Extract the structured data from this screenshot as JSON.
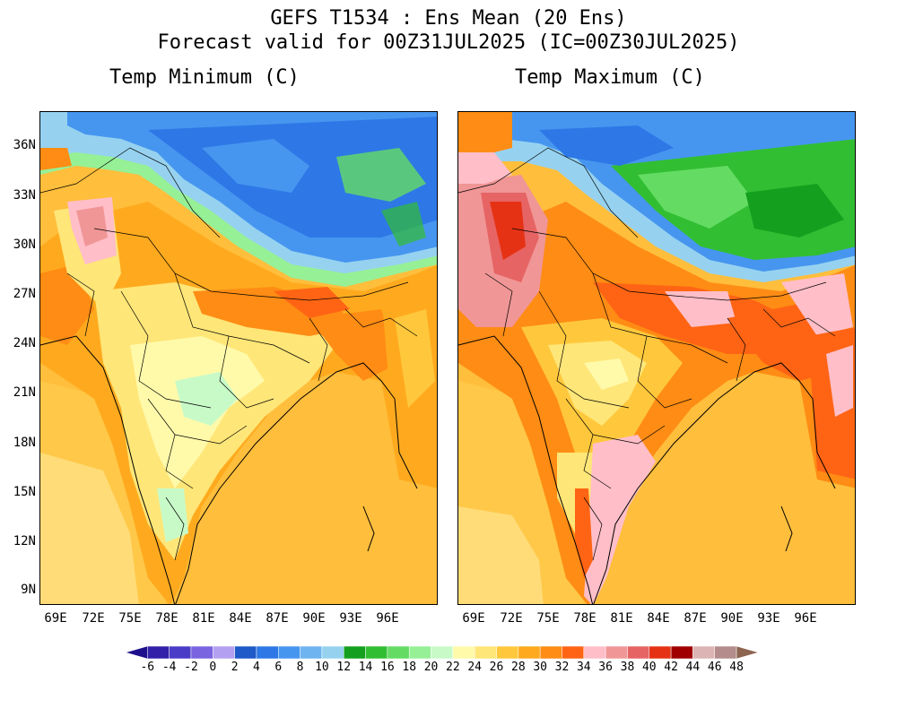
{
  "header": {
    "line1": "GEFS T1534 : Ens Mean (20 Ens)",
    "line2": "Forecast valid for 00Z31JUL2025 (IC=00Z30JUL2025)"
  },
  "panels": [
    {
      "title": "Temp Minimum (C)"
    },
    {
      "title": "Temp Maximum (C)"
    }
  ],
  "lat_labels": [
    "36N",
    "33N",
    "30N",
    "27N",
    "24N",
    "21N",
    "18N",
    "15N",
    "12N",
    "9N"
  ],
  "lon_labels": [
    "69E",
    "72E",
    "75E",
    "78E",
    "81E",
    "84E",
    "87E",
    "90E",
    "93E",
    "96E"
  ],
  "colorbar": {
    "labels": [
      "-6",
      "-4",
      "-2",
      "0",
      "2",
      "4",
      "6",
      "8",
      "10",
      "12",
      "14",
      "16",
      "18",
      "20",
      "22",
      "24",
      "26",
      "28",
      "30",
      "32",
      "34",
      "36",
      "38",
      "40",
      "42",
      "44",
      "46",
      "48"
    ],
    "colors": [
      "#1e0f8c",
      "#3220a8",
      "#4b3cc8",
      "#7a64e0",
      "#b4a0f0",
      "#1e5ac8",
      "#2d78e6",
      "#4696f0",
      "#6eb4f0",
      "#96d2f0",
      "#14a01e",
      "#32be32",
      "#64dc64",
      "#96f096",
      "#c8fac8",
      "#fffaaa",
      "#ffe678",
      "#ffc83c",
      "#ffaa1e",
      "#ff8c14",
      "#ff6414",
      "#ffbec8",
      "#f09696",
      "#e66464",
      "#e63214",
      "#a00000",
      "#dcb4b4",
      "#b48c8c",
      "#8c6450"
    ]
  }
}
